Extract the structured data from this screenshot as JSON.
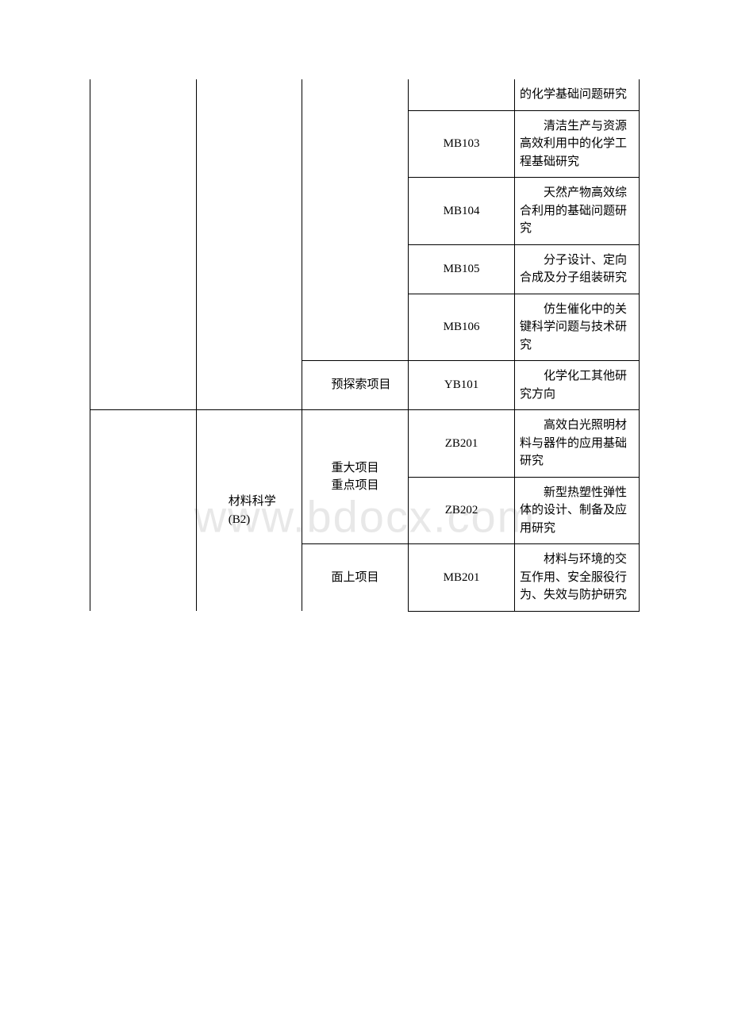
{
  "watermark": "www.bdocx.com",
  "table": {
    "columns": {
      "col1_width": 115,
      "col2_width": 115,
      "col3_width": 115,
      "col4_width": 115,
      "col5_width": 135
    },
    "border_color": "#000000",
    "background_color": "#ffffff",
    "text_color": "#000000",
    "watermark_color": "#e8e8e8",
    "font_size": 15,
    "rows": [
      {
        "code": "",
        "desc": "的化学基础问题研究",
        "continues_from_above": true
      },
      {
        "code": "MB103",
        "desc": "清洁生产与资源高效利用中的化学工程基础研究"
      },
      {
        "code": "MB104",
        "desc": "天然产物高效综合利用的基础问题研究"
      },
      {
        "code": "MB105",
        "desc": "分子设计、定向合成及分子组装研究"
      },
      {
        "code": "MB106",
        "desc": "仿生催化中的关键科学问题与技术研究"
      },
      {
        "category": "预探索项目",
        "code": "YB101",
        "desc": "化学化工其他研究方向"
      },
      {
        "subject": "材料科学",
        "subject_code": "(B2)",
        "category": "重大项目",
        "category2": "重点项目",
        "code": "ZB201",
        "desc": "高效白光照明材料与器件的应用基础研究"
      },
      {
        "code": "ZB202",
        "desc": "新型热塑性弹性体的设计、制备及应用研究"
      },
      {
        "category": "面上项目",
        "code": "MB201",
        "desc": "材料与环境的交互作用、安全服役行为、失效与防护研究"
      }
    ]
  }
}
